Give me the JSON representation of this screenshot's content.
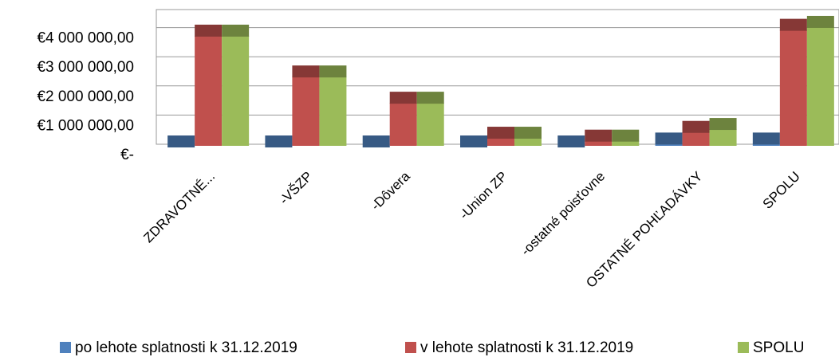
{
  "chart_data": {
    "type": "bar",
    "categories": [
      "ZDRAVOTNÉ...",
      "-VŠZP",
      "-Dôvera",
      "-Union ZP",
      "-ostatné poisťovne",
      "OSTATNÉ POHĽADÁVKY",
      "SPOLU"
    ],
    "series": [
      {
        "name": "po lehote splatnosti k 31.12.2019",
        "color": "#4f81bd",
        "values": [
          300000,
          300000,
          300000,
          300000,
          300000,
          400000,
          400000
        ]
      },
      {
        "name": "v lehote splatnosti k 31.12.2019",
        "color": "#c0504d",
        "values": [
          4100000,
          2700000,
          1800000,
          600000,
          500000,
          800000,
          4300000
        ]
      },
      {
        "name": "SPOLU",
        "color": "#9bbb59",
        "values": [
          4100000,
          2700000,
          1800000,
          600000,
          500000,
          900000,
          4400000
        ]
      }
    ],
    "ylim": [
      0,
      5000000
    ],
    "yticks": [
      {
        "value": 0,
        "label": "€-"
      },
      {
        "value": 1000000,
        "label": "€1 000 000,00"
      },
      {
        "value": 2000000,
        "label": "€2 000 000,00"
      },
      {
        "value": 3000000,
        "label": "€3 000 000,00"
      },
      {
        "value": 4000000,
        "label": "€4 000 000,00"
      }
    ],
    "grid": true
  }
}
